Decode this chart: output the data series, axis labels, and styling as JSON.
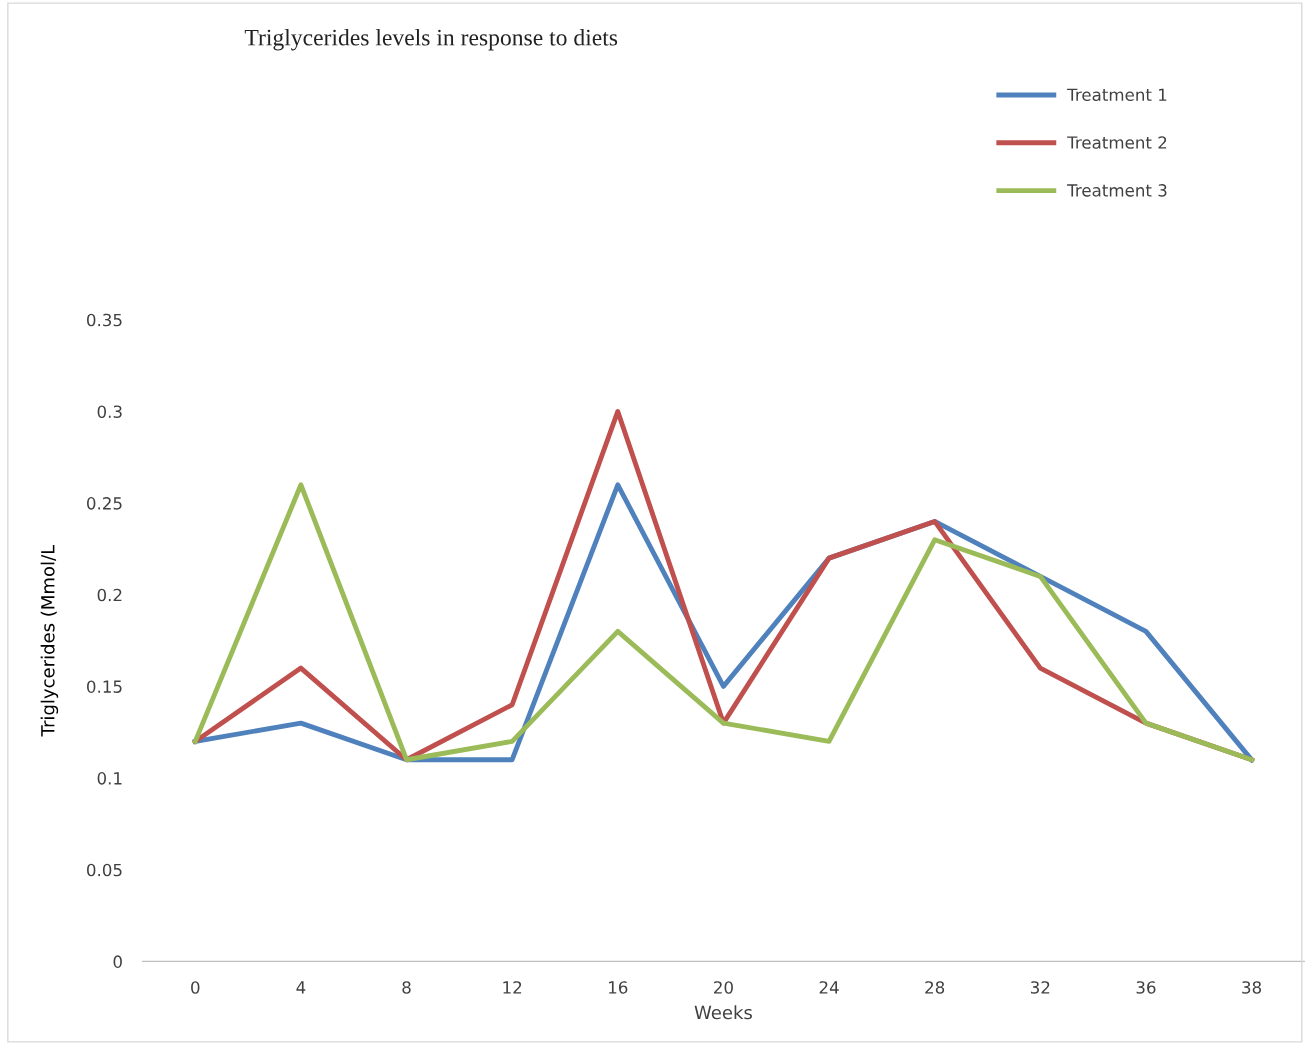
{
  "chart_data": {
    "type": "line",
    "title": "Triglycerides levels in response to diets",
    "xlabel": "Weeks",
    "ylabel": "Triglycerides (Mmol/L",
    "categories": [
      "0",
      "4",
      "8",
      "12",
      "16",
      "20",
      "24",
      "28",
      "32",
      "36",
      "38"
    ],
    "series": [
      {
        "name": "Treatment 1",
        "color": "#4f81bd",
        "values": [
          0.12,
          0.13,
          0.11,
          0.11,
          0.26,
          0.15,
          0.22,
          0.24,
          0.21,
          0.18,
          0.11
        ]
      },
      {
        "name": "Treatment 2",
        "color": "#c0504d",
        "values": [
          0.12,
          0.16,
          0.11,
          0.14,
          0.3,
          0.13,
          0.22,
          0.24,
          0.16,
          0.13,
          0.11
        ]
      },
      {
        "name": "Treatment 3",
        "color": "#9bbb59",
        "values": [
          0.12,
          0.26,
          0.11,
          0.12,
          0.18,
          0.13,
          0.12,
          0.23,
          0.21,
          0.13,
          0.11
        ]
      }
    ],
    "ylim": [
      0,
      0.35
    ],
    "yticks": [
      0,
      0.05,
      0.1,
      0.15,
      0.2,
      0.25,
      0.3,
      0.35
    ],
    "grid": false,
    "legend": "top right",
    "marker": "none",
    "line_style": "solid"
  }
}
